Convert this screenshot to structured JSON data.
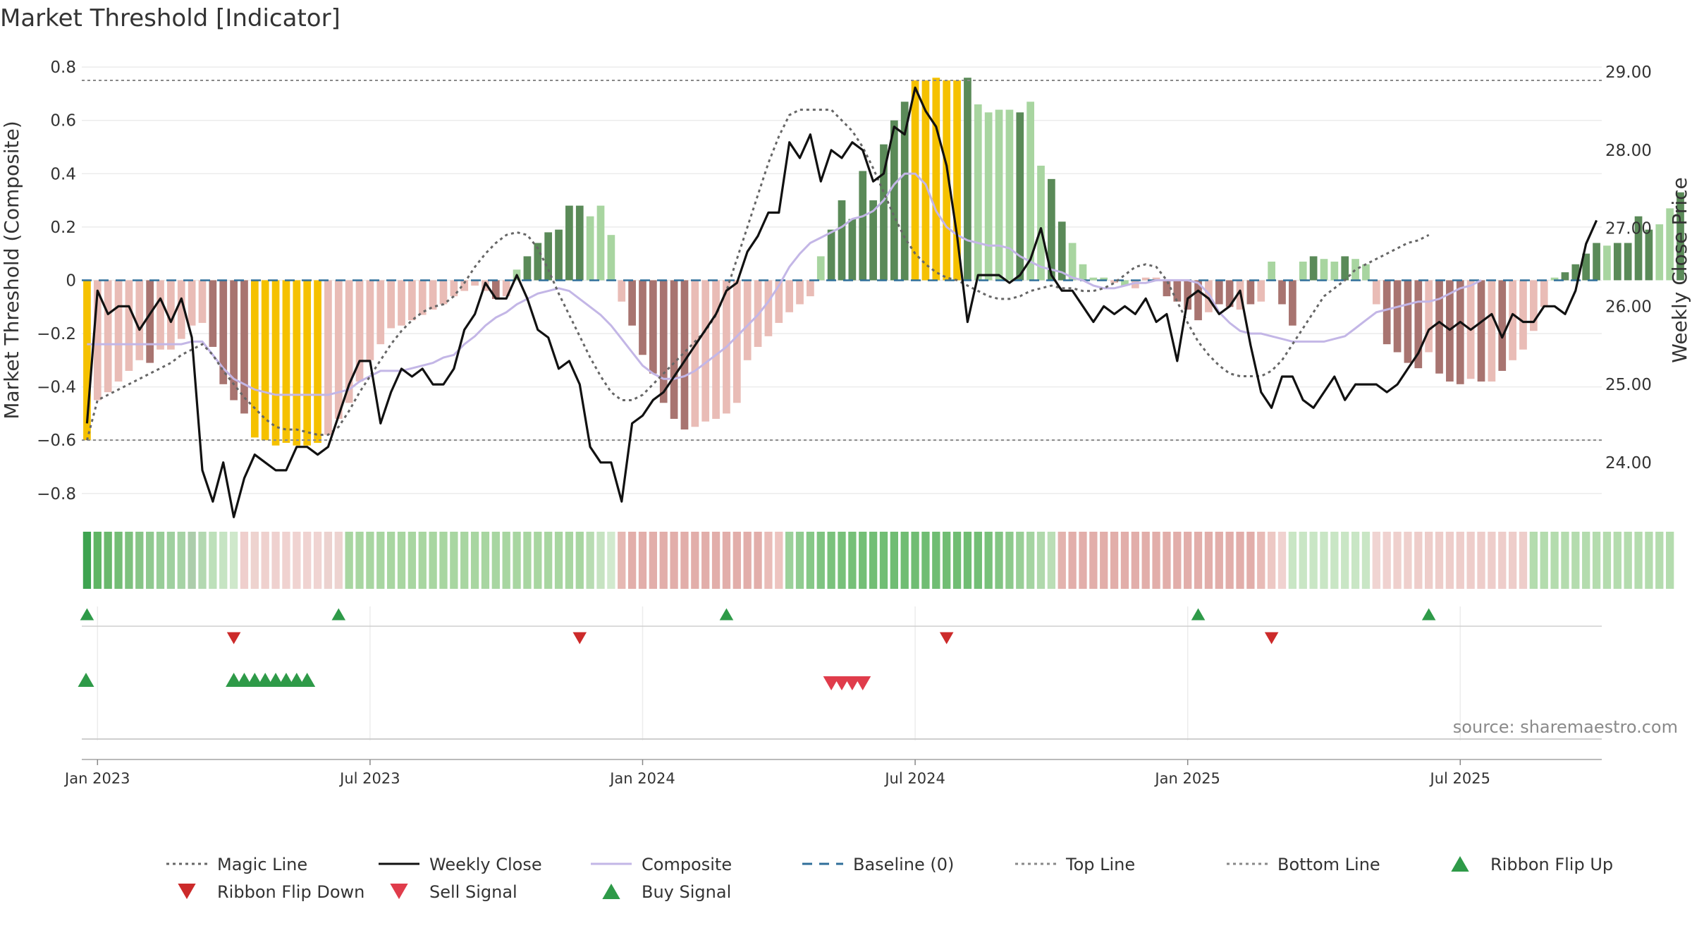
{
  "title": "Market Threshold [Indicator]",
  "source": "source: sharemaestro.com",
  "colors": {
    "bar_gold": "#f5c100",
    "bar_pos_dark": "#5a8a58",
    "bar_pos_light": "#a8d5a0",
    "bar_neg_dark": "#a87470",
    "bar_neg_light": "#e9bcb6",
    "weekly_close": "#111111",
    "composite": "#c3b6e6",
    "magic_line": "#666666",
    "baseline": "#2f6f9a",
    "ribbon_flip_up": "#2e9a48",
    "ribbon_flip_down": "#cc2a2a",
    "sell_signal": "#e03c4b",
    "buy_signal": "#2e9a48"
  },
  "chart_data": {
    "type": "bar",
    "title": "Market Threshold [Indicator]",
    "ylabel": "Market Threshold (Composite)",
    "y2label": "Weekly Close Price",
    "ylim": [
      -0.88,
      0.84
    ],
    "y2lim": [
      23.33,
      29.2
    ],
    "yticks": [
      "0.8",
      "0.6",
      "0.4",
      "0.2",
      "0",
      "−0.2",
      "−0.4",
      "−0.6",
      "−0.8"
    ],
    "yticks_values": [
      0.8,
      0.6,
      0.4,
      0.2,
      0,
      -0.2,
      -0.4,
      -0.6,
      -0.8
    ],
    "y2ticks": [
      "29.00",
      "28.00",
      "27.00",
      "26.00",
      "25.00",
      "24.00"
    ],
    "y2ticks_values": [
      29,
      28,
      27,
      26,
      25,
      24
    ],
    "xticks": [
      "Jan 2023",
      "Jul 2023",
      "Jan 2024",
      "Jul 2024",
      "Jan 2025",
      "Jul 2025"
    ],
    "xticks_weeks": [
      1,
      27,
      53,
      79,
      105,
      131
    ],
    "top_line": 0.75,
    "bottom_line": -0.6,
    "baseline": 0,
    "grid": true,
    "legend_position": "bottom",
    "weeks": 145,
    "composite_bars": [
      -0.6,
      -0.45,
      -0.42,
      -0.38,
      -0.34,
      -0.3,
      -0.31,
      -0.26,
      -0.26,
      -0.22,
      -0.17,
      -0.16,
      -0.25,
      -0.39,
      -0.45,
      -0.5,
      -0.59,
      -0.6,
      -0.62,
      -0.61,
      -0.62,
      -0.62,
      -0.61,
      -0.58,
      -0.52,
      -0.46,
      -0.38,
      -0.3,
      -0.24,
      -0.18,
      -0.17,
      -0.15,
      -0.13,
      -0.11,
      -0.09,
      -0.06,
      -0.04,
      -0.02,
      -0.04,
      -0.07,
      -0.06,
      0.04,
      0.09,
      0.14,
      0.18,
      0.19,
      0.28,
      0.28,
      0.24,
      0.28,
      0.17,
      -0.08,
      -0.17,
      -0.28,
      -0.35,
      -0.46,
      -0.52,
      -0.56,
      -0.55,
      -0.53,
      -0.52,
      -0.5,
      -0.46,
      -0.3,
      -0.25,
      -0.21,
      -0.16,
      -0.12,
      -0.09,
      -0.06,
      0.09,
      0.19,
      0.3,
      0.23,
      0.41,
      0.3,
      0.51,
      0.6,
      0.67,
      0.75,
      0.75,
      0.76,
      0.75,
      0.75,
      0.76,
      0.66,
      0.63,
      0.64,
      0.64,
      0.63,
      0.67,
      0.43,
      0.38,
      0.22,
      0.14,
      0.06,
      0.01,
      0.01,
      -0.01,
      -0.02,
      -0.03,
      0.01,
      0.01,
      -0.06,
      -0.08,
      -0.11,
      -0.15,
      -0.12,
      -0.09,
      -0.1,
      -0.11,
      -0.09,
      -0.08,
      0.07,
      -0.09,
      -0.17,
      0.07,
      0.09,
      0.08,
      0.07,
      0.09,
      0.08,
      0.06,
      -0.09,
      -0.24,
      -0.27,
      -0.31,
      -0.33,
      -0.27,
      -0.35,
      -0.38,
      -0.39,
      -0.37,
      -0.38,
      -0.38,
      -0.34,
      -0.3,
      -0.26,
      -0.19,
      -0.1,
      0.01,
      0.03,
      0.06,
      0.1,
      0.14,
      0.13,
      0.14,
      0.14,
      0.24,
      0.19,
      0.21,
      0.27,
      0.33
    ],
    "bar_colors": [
      "gold",
      "neg_light",
      "neg_light",
      "neg_light",
      "neg_light",
      "neg_light",
      "neg_dark",
      "neg_light",
      "neg_light",
      "neg_light",
      "neg_light",
      "neg_light",
      "neg_dark",
      "neg_dark",
      "neg_dark",
      "neg_dark",
      "gold",
      "gold",
      "gold",
      "gold",
      "gold",
      "gold",
      "gold",
      "neg_light",
      "neg_light",
      "neg_light",
      "neg_light",
      "neg_light",
      "neg_light",
      "neg_light",
      "neg_light",
      "neg_light",
      "neg_light",
      "neg_light",
      "neg_light",
      "neg_light",
      "neg_light",
      "neg_light",
      "neg_light",
      "neg_dark",
      "neg_light",
      "pos_light",
      "pos_dark",
      "pos_dark",
      "pos_dark",
      "pos_dark",
      "pos_dark",
      "pos_dark",
      "pos_light",
      "pos_light",
      "pos_light",
      "neg_light",
      "neg_dark",
      "neg_dark",
      "neg_dark",
      "neg_dark",
      "neg_dark",
      "neg_dark",
      "neg_light",
      "neg_light",
      "neg_light",
      "neg_light",
      "neg_light",
      "neg_light",
      "neg_light",
      "neg_light",
      "neg_light",
      "neg_light",
      "neg_light",
      "neg_light",
      "pos_light",
      "pos_dark",
      "pos_dark",
      "pos_dark",
      "pos_dark",
      "pos_dark",
      "pos_dark",
      "pos_dark",
      "pos_dark",
      "gold",
      "gold",
      "gold",
      "gold",
      "gold",
      "pos_dark",
      "pos_light",
      "pos_light",
      "pos_light",
      "pos_light",
      "pos_dark",
      "pos_light",
      "pos_light",
      "pos_dark",
      "pos_dark",
      "pos_light",
      "pos_light",
      "pos_light",
      "pos_light",
      "neg_light",
      "pos_light",
      "neg_light",
      "neg_light",
      "neg_light",
      "neg_dark",
      "neg_dark",
      "neg_dark",
      "neg_dark",
      "neg_light",
      "neg_dark",
      "neg_dark",
      "neg_light",
      "neg_dark",
      "neg_light",
      "pos_light",
      "neg_dark",
      "neg_dark",
      "pos_light",
      "pos_dark",
      "pos_light",
      "pos_light",
      "pos_dark",
      "pos_light",
      "pos_light",
      "neg_light",
      "neg_dark",
      "neg_dark",
      "neg_dark",
      "neg_dark",
      "neg_light",
      "neg_dark",
      "neg_dark",
      "neg_dark",
      "neg_light",
      "neg_dark",
      "neg_light",
      "neg_dark",
      "neg_light",
      "neg_light",
      "neg_light",
      "neg_light",
      "pos_light",
      "pos_dark",
      "pos_dark",
      "pos_dark",
      "pos_dark",
      "pos_light",
      "pos_dark",
      "pos_dark",
      "pos_dark",
      "pos_dark",
      "pos_light",
      "pos_light",
      "pos_dark",
      "pos_dark"
    ],
    "series": [
      {
        "name": "Weekly Close",
        "axis": "right",
        "values": [
          24.5,
          26.2,
          25.9,
          26.0,
          26.0,
          25.7,
          25.9,
          26.1,
          25.8,
          26.1,
          25.6,
          23.9,
          23.5,
          24.0,
          23.3,
          23.8,
          24.1,
          24.0,
          23.9,
          23.9,
          24.2,
          24.2,
          24.1,
          24.2,
          24.6,
          25.0,
          25.3,
          25.3,
          24.5,
          24.9,
          25.2,
          25.1,
          25.2,
          25.0,
          25.0,
          25.2,
          25.7,
          25.9,
          26.3,
          26.1,
          26.1,
          26.4,
          26.1,
          25.7,
          25.6,
          25.2,
          25.3,
          25.0,
          24.2,
          24.0,
          24.0,
          23.5,
          24.5,
          24.6,
          24.8,
          24.9,
          25.1,
          25.3,
          25.5,
          25.7,
          25.9,
          26.2,
          26.3,
          26.7,
          26.9,
          27.2,
          27.2,
          28.1,
          27.9,
          28.2,
          27.6,
          28.0,
          27.9,
          28.1,
          28.0,
          27.6,
          27.7,
          28.3,
          28.2,
          28.8,
          28.5,
          28.3,
          27.8,
          26.9,
          25.8,
          26.4,
          26.4,
          26.4,
          26.3,
          26.4,
          26.6,
          27.0,
          26.4,
          26.2,
          26.2,
          26.0,
          25.8,
          26.0,
          25.9,
          26.0,
          25.9,
          26.1,
          25.8,
          25.9,
          25.3,
          26.1,
          26.2,
          26.1,
          25.9,
          26.0,
          26.2,
          25.5,
          24.9,
          24.7,
          25.1,
          25.1,
          24.8,
          24.7,
          24.9,
          25.1,
          24.8,
          25.0,
          25.0,
          25.0,
          24.9,
          25.0,
          25.2,
          25.4,
          25.7,
          25.8,
          25.7,
          25.8,
          25.7,
          25.8,
          25.9,
          25.6,
          25.9,
          25.8,
          25.8,
          26.0,
          26.0,
          25.9,
          26.2,
          26.8,
          27.1
        ]
      },
      {
        "name": "Composite",
        "axis": "left",
        "values": [
          -0.24,
          -0.24,
          -0.24,
          -0.24,
          -0.24,
          -0.24,
          -0.24,
          -0.24,
          -0.24,
          -0.24,
          -0.23,
          -0.23,
          -0.28,
          -0.33,
          -0.37,
          -0.39,
          -0.41,
          -0.42,
          -0.43,
          -0.43,
          -0.43,
          -0.43,
          -0.43,
          -0.43,
          -0.42,
          -0.41,
          -0.38,
          -0.36,
          -0.34,
          -0.34,
          -0.34,
          -0.33,
          -0.32,
          -0.31,
          -0.29,
          -0.28,
          -0.24,
          -0.21,
          -0.17,
          -0.14,
          -0.12,
          -0.09,
          -0.07,
          -0.05,
          -0.04,
          -0.03,
          -0.04,
          -0.07,
          -0.1,
          -0.13,
          -0.17,
          -0.22,
          -0.27,
          -0.32,
          -0.35,
          -0.37,
          -0.37,
          -0.36,
          -0.34,
          -0.31,
          -0.28,
          -0.25,
          -0.21,
          -0.17,
          -0.13,
          -0.08,
          -0.02,
          0.05,
          0.1,
          0.14,
          0.16,
          0.18,
          0.2,
          0.23,
          0.24,
          0.26,
          0.3,
          0.36,
          0.4,
          0.4,
          0.36,
          0.26,
          0.2,
          0.17,
          0.15,
          0.14,
          0.13,
          0.13,
          0.12,
          0.09,
          0.07,
          0.05,
          0.04,
          0.03,
          0.01,
          0.0,
          -0.02,
          -0.03,
          -0.03,
          -0.02,
          -0.01,
          -0.01,
          0.0,
          0.0,
          0.0,
          0.0,
          -0.01,
          -0.05,
          -0.12,
          -0.16,
          -0.19,
          -0.2,
          -0.2,
          -0.21,
          -0.22,
          -0.23,
          -0.23,
          -0.23,
          -0.23,
          -0.22,
          -0.21,
          -0.18,
          -0.15,
          -0.12,
          -0.11,
          -0.1,
          -0.09,
          -0.08,
          -0.08,
          -0.07,
          -0.05,
          -0.03,
          -0.02,
          0.0
        ]
      },
      {
        "name": "Magic Line",
        "axis": "left",
        "values": [
          -0.6,
          -0.45,
          -0.43,
          -0.41,
          -0.39,
          -0.37,
          -0.35,
          -0.33,
          -0.31,
          -0.28,
          -0.26,
          -0.24,
          -0.28,
          -0.34,
          -0.39,
          -0.44,
          -0.48,
          -0.52,
          -0.55,
          -0.56,
          -0.56,
          -0.57,
          -0.58,
          -0.58,
          -0.55,
          -0.49,
          -0.42,
          -0.36,
          -0.3,
          -0.24,
          -0.19,
          -0.15,
          -0.12,
          -0.1,
          -0.09,
          -0.06,
          -0.01,
          0.05,
          0.1,
          0.14,
          0.17,
          0.18,
          0.17,
          0.12,
          0.04,
          -0.05,
          -0.13,
          -0.21,
          -0.29,
          -0.36,
          -0.42,
          -0.45,
          -0.45,
          -0.43,
          -0.39,
          -0.35,
          -0.31,
          -0.27,
          -0.23,
          -0.19,
          -0.13,
          -0.04,
          0.08,
          0.2,
          0.32,
          0.44,
          0.54,
          0.62,
          0.64,
          0.64,
          0.64,
          0.64,
          0.6,
          0.56,
          0.5,
          0.42,
          0.33,
          0.24,
          0.16,
          0.1,
          0.06,
          0.03,
          0.01,
          0.0,
          -0.02,
          -0.04,
          -0.06,
          -0.07,
          -0.07,
          -0.06,
          -0.04,
          -0.03,
          -0.02,
          -0.03,
          -0.03,
          -0.04,
          -0.04,
          -0.03,
          -0.01,
          0.02,
          0.05,
          0.06,
          0.05,
          0.0,
          -0.08,
          -0.16,
          -0.23,
          -0.28,
          -0.32,
          -0.35,
          -0.36,
          -0.36,
          -0.36,
          -0.34,
          -0.3,
          -0.24,
          -0.18,
          -0.12,
          -0.06,
          -0.03,
          0.0,
          0.04,
          0.06,
          0.08,
          0.1,
          0.12,
          0.14,
          0.15,
          0.17
        ]
      }
    ],
    "ribbon": [
      "#3ea350",
      "#5fb564",
      "#69b86c",
      "#73bd75",
      "#7dc17e",
      "#87c587",
      "#90c990",
      "#98cd98",
      "#9fd09f",
      "#a6d3a5",
      "#accdab",
      "#b3d8b1",
      "#bde0ba",
      "#c6e4c3",
      "#cfe8cb",
      "#efcfcd",
      "#eed3cf",
      "#efd1ce",
      "#efd1cf",
      "#f0d2d0",
      "#f0d3d1",
      "#f0d3d1",
      "#f0d4d2",
      "#ecd2cf",
      "#edd3d0",
      "#a8d6a1",
      "#a8d6a1",
      "#a8d6a1",
      "#a8d6a1",
      "#a8d6a1",
      "#a8d6a1",
      "#a8d6a1",
      "#a8d6a1",
      "#a8d6a1",
      "#a8d6a1",
      "#a8d6a1",
      "#a8d6a1",
      "#a8d6a1",
      "#a8d6a1",
      "#a8d6a1",
      "#a8d6a1",
      "#a8d6a1",
      "#a8d6a1",
      "#a8d6a1",
      "#a8d6a1",
      "#a8d6a1",
      "#a8d6a1",
      "#a8d6a1",
      "#b8dcb2",
      "#c6e3c1",
      "#d2e9ce",
      "#e6b8b3",
      "#e2aeaa",
      "#e2aeaa",
      "#e2aeaa",
      "#e2aeaa",
      "#e2aeaa",
      "#e2aeaa",
      "#e2aeaa",
      "#e2aeaa",
      "#e2aeaa",
      "#e2aeaa",
      "#e2aeaa",
      "#e2aeaa",
      "#e2aeaa",
      "#e9bcb8",
      "#edc4c0",
      "#9bd19a",
      "#90cc90",
      "#86c887",
      "#7fc481",
      "#7ac27c",
      "#78c17a",
      "#76c078",
      "#74bf76",
      "#72be75",
      "#71be74",
      "#70bd73",
      "#70bd73",
      "#70bd73",
      "#70bd73",
      "#70bd73",
      "#70bd73",
      "#70bd73",
      "#70bd73",
      "#72be75",
      "#78c17a",
      "#82c583",
      "#8dca8c",
      "#99cf97",
      "#a4d4a1",
      "#b0d9ac",
      "#bbdeb6",
      "#e3b3ae",
      "#e2aeaa",
      "#e2aeaa",
      "#e2aeaa",
      "#e2aeaa",
      "#e2aeaa",
      "#e2aeaa",
      "#e2aeaa",
      "#e2aeaa",
      "#e2aeaa",
      "#e2aeaa",
      "#e2aeaa",
      "#e2aeaa",
      "#e2aeaa",
      "#e2aeaa",
      "#e2aeaa",
      "#e2aeaa",
      "#e2aeaa",
      "#e2aeaa",
      "#e8bbb7",
      "#edc8c4",
      "#f0d2d0",
      "#c9e6c5",
      "#c9e6c5",
      "#c9e6c5",
      "#c9e6c5",
      "#c9e6c5",
      "#c9e6c5",
      "#c9e6c5",
      "#c9e6c5",
      "#f0d4d2",
      "#f0d2d0",
      "#efd0cd",
      "#efd0cd",
      "#eecdca",
      "#eecdca",
      "#eecdca",
      "#eecdca",
      "#eecdca",
      "#eecdca",
      "#eecdca",
      "#eecdca",
      "#eecdca",
      "#eecdca",
      "#eecdca",
      "#b4dcae",
      "#b4dcae",
      "#b4dcae",
      "#b4dcae",
      "#b4dcae",
      "#b4dcae",
      "#b4dcae",
      "#b4dcae",
      "#b4dcae",
      "#b4dcae",
      "#b4dcae",
      "#b4dcae",
      "#b4dcae",
      "#b4dcae"
    ],
    "ribbon_flip_up_weeks": [
      0,
      24,
      61,
      106,
      128
    ],
    "ribbon_flip_down_weeks": [
      14,
      47,
      82,
      113
    ],
    "buy_signal_weeks": [
      -1,
      14,
      15,
      16,
      17,
      18,
      19,
      20,
      21
    ],
    "sell_signal_weeks": [
      71,
      72,
      73,
      74
    ]
  },
  "legend": [
    {
      "label": "Magic Line",
      "symbol": "dotted",
      "color": "#666666"
    },
    {
      "label": "Weekly Close",
      "symbol": "solid",
      "color": "#111111"
    },
    {
      "label": "Composite",
      "symbol": "solid",
      "color": "#c3b6e6"
    },
    {
      "label": "Baseline (0)",
      "symbol": "dashed",
      "color": "#2f6f9a"
    },
    {
      "label": "Top Line",
      "symbol": "dotted",
      "color": "#888888"
    },
    {
      "label": "Bottom Line",
      "symbol": "dotted",
      "color": "#888888"
    },
    {
      "label": "Ribbon Flip Up",
      "symbol": "triangle-up",
      "color": "#2e9a48"
    },
    {
      "label": "Ribbon Flip Down",
      "symbol": "triangle-down",
      "color": "#cc2a2a"
    },
    {
      "label": "Sell Signal",
      "symbol": "triangle-down",
      "color": "#e03c4b"
    },
    {
      "label": "Buy Signal",
      "symbol": "triangle-up",
      "color": "#2e9a48"
    }
  ]
}
